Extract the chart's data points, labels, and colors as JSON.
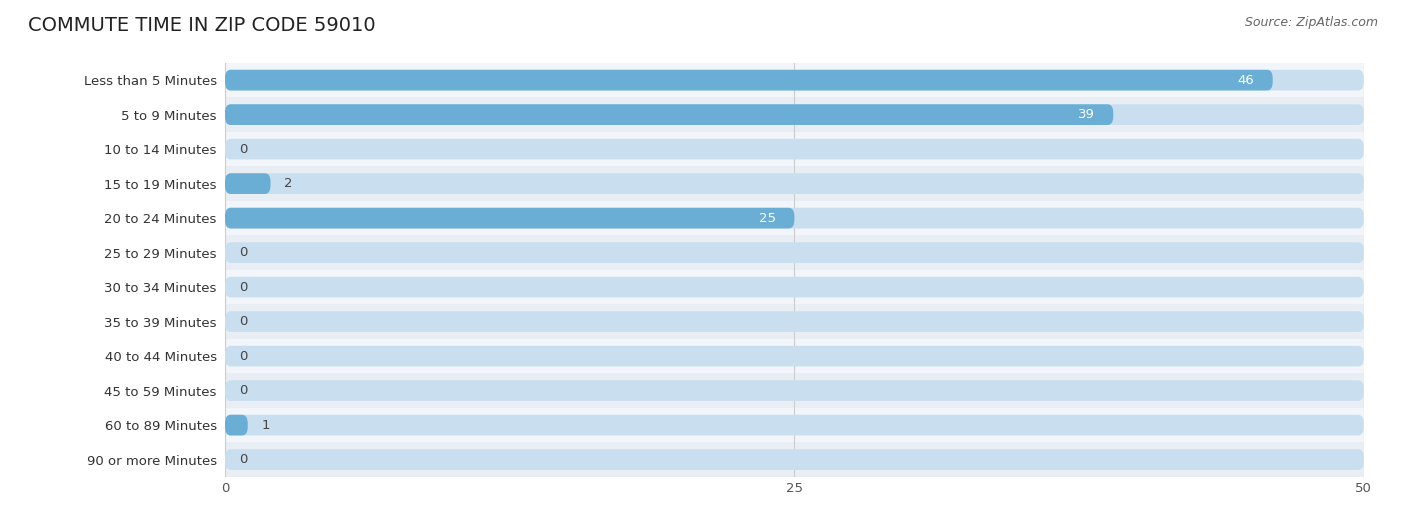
{
  "title": "COMMUTE TIME IN ZIP CODE 59010",
  "source": "Source: ZipAtlas.com",
  "categories": [
    "Less than 5 Minutes",
    "5 to 9 Minutes",
    "10 to 14 Minutes",
    "15 to 19 Minutes",
    "20 to 24 Minutes",
    "25 to 29 Minutes",
    "30 to 34 Minutes",
    "35 to 39 Minutes",
    "40 to 44 Minutes",
    "45 to 59 Minutes",
    "60 to 89 Minutes",
    "90 or more Minutes"
  ],
  "values": [
    46,
    39,
    0,
    2,
    25,
    0,
    0,
    0,
    0,
    0,
    1,
    0
  ],
  "xlim": [
    0,
    50
  ],
  "xticks": [
    0,
    25,
    50
  ],
  "bar_color": "#6aaed6",
  "bar_bg_color": "#c9dff0",
  "label_color_inside": "#ffffff",
  "label_color_outside": "#444444",
  "background_color": "#ffffff",
  "title_fontsize": 14,
  "label_fontsize": 9.5,
  "value_fontsize": 9.5,
  "source_fontsize": 9,
  "bar_height": 0.6,
  "row_even_color": "#f2f6fa",
  "row_odd_color": "#e8eef4"
}
